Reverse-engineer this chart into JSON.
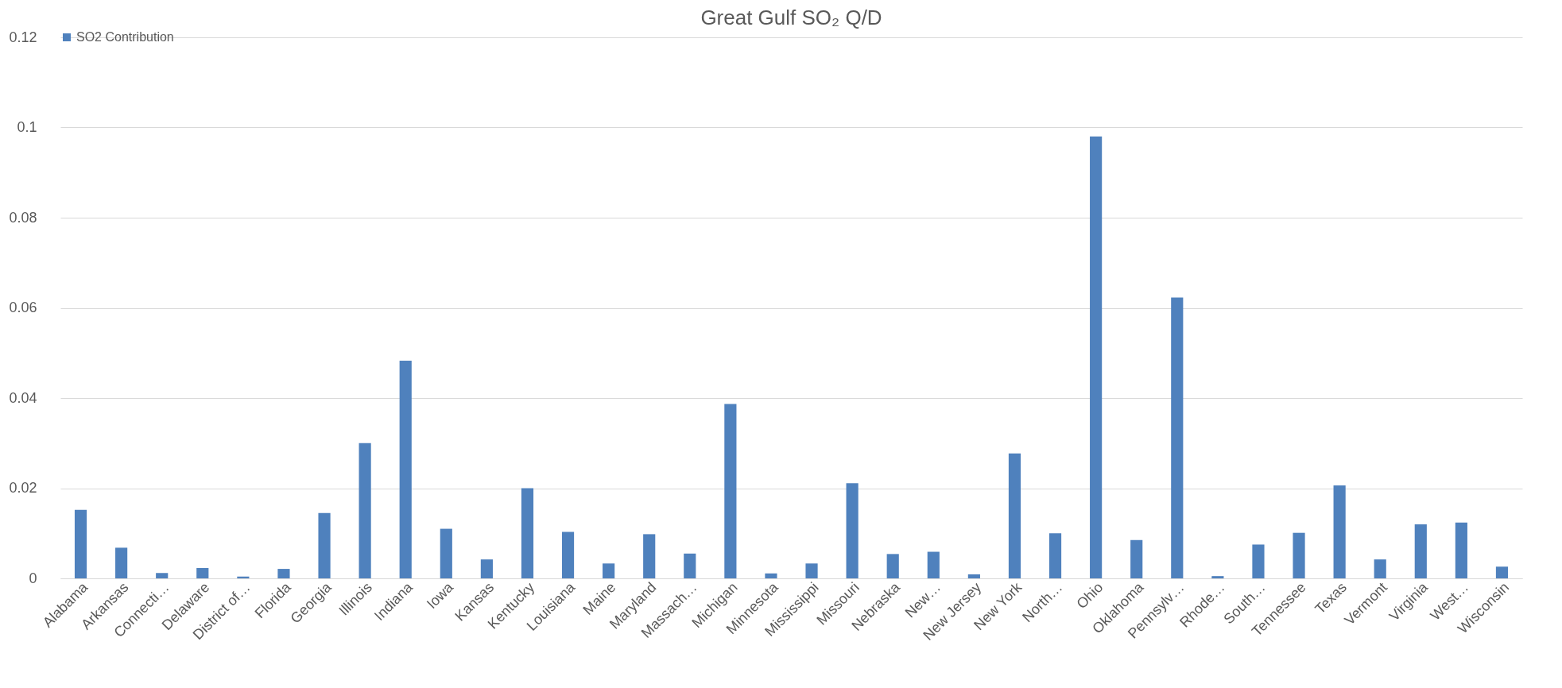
{
  "chart_data": {
    "type": "bar",
    "title": "Great Gulf SO₂ Q/D",
    "categories": [
      "Alabama",
      "Arkansas",
      "Connecti…",
      "Delaware",
      "District of…",
      "Florida",
      "Georgia",
      "Illinois",
      "Indiana",
      "Iowa",
      "Kansas",
      "Kentucky",
      "Louisiana",
      "Maine",
      "Maryland",
      "Massach…",
      "Michigan",
      "Minnesota",
      "Mississippi",
      "Missouri",
      "Nebraska",
      "New…",
      "New Jersey",
      "New York",
      "North…",
      "Ohio",
      "Oklahoma",
      "Pennsylv…",
      "Rhode…",
      "South…",
      "Tennessee",
      "Texas",
      "Vermont",
      "Virginia",
      "West…",
      "Wisconsin"
    ],
    "series": [
      {
        "name": "SO2 Contribution",
        "color": "#4f81bd",
        "values": [
          0.0152,
          0.0068,
          0.0012,
          0.0023,
          0.0004,
          0.0021,
          0.0145,
          0.03,
          0.0483,
          0.011,
          0.0042,
          0.02,
          0.0103,
          0.0033,
          0.0098,
          0.0055,
          0.0387,
          0.0011,
          0.0033,
          0.0211,
          0.0054,
          0.0059,
          0.0009,
          0.0277,
          0.01,
          0.098,
          0.0085,
          0.0623,
          0.0005,
          0.0075,
          0.0101,
          0.0206,
          0.0042,
          0.012,
          0.0124,
          0.0026
        ]
      }
    ],
    "ylim": [
      0,
      0.12
    ],
    "yticks": [
      0,
      0.02,
      0.04,
      0.06,
      0.08,
      0.1,
      0.12
    ],
    "grid": "y",
    "legend": "top"
  }
}
